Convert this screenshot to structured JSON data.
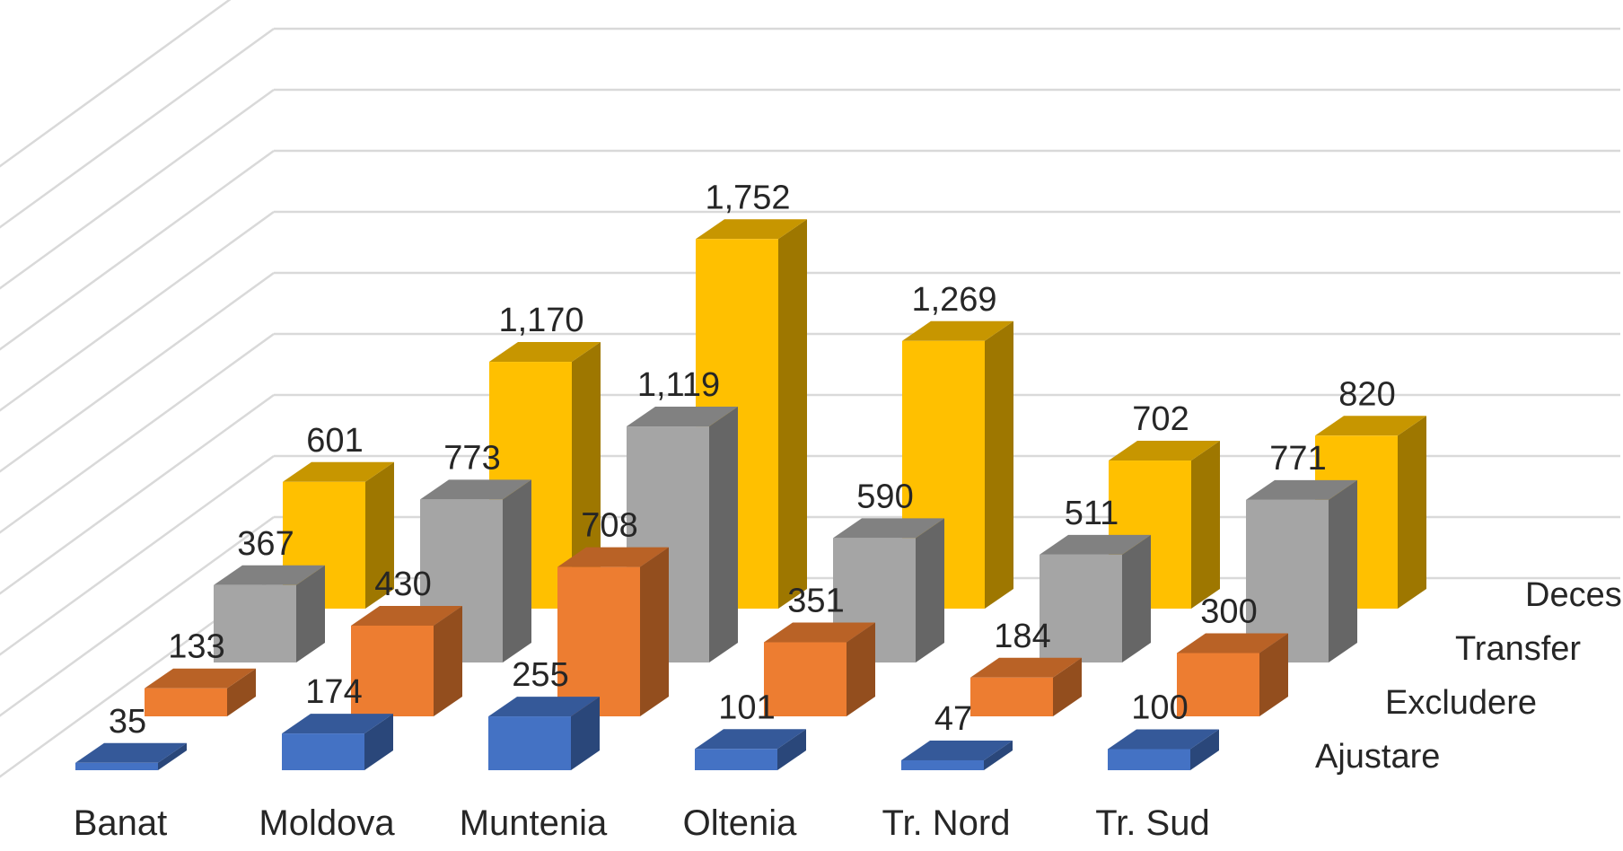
{
  "chart_data": {
    "type": "bar",
    "categories": [
      "Banat",
      "Moldova",
      "Muntenia",
      "Oltenia",
      "Tr. Nord",
      "Tr. Sud"
    ],
    "series": [
      {
        "name": "Ajustare",
        "values": [
          35,
          174,
          255,
          101,
          47,
          100
        ],
        "color": "#4472c4"
      },
      {
        "name": "Excludere",
        "values": [
          133,
          430,
          708,
          351,
          184,
          300
        ],
        "color": "#ed7d31"
      },
      {
        "name": "Transfer",
        "values": [
          367,
          773,
          1119,
          590,
          511,
          771
        ],
        "color": "#a5a5a5"
      },
      {
        "name": "Deces",
        "values": [
          601,
          1170,
          1752,
          1269,
          702,
          820
        ],
        "color": "#ffc000"
      }
    ],
    "value_labels": [
      [
        "35",
        "174",
        "255",
        "101",
        "47",
        "100"
      ],
      [
        "133",
        "430",
        "708",
        "351",
        "184",
        "300"
      ],
      [
        "367",
        "773",
        "1,119",
        "590",
        "511",
        "771"
      ],
      [
        "601",
        "1,170",
        "1,752",
        "1,269",
        "702",
        "820"
      ]
    ],
    "ylim": [
      0,
      2000
    ],
    "grid": true,
    "legend": "series labels on depth axis (right)"
  }
}
